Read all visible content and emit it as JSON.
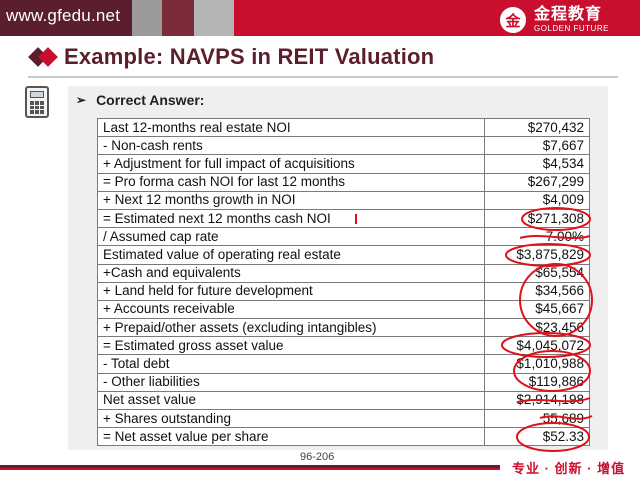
{
  "header": {
    "site_url": "www.gfedu.net",
    "logo_cn": "金程教育",
    "logo_en": "GOLDEN FUTURE",
    "logo_seal": "金",
    "colors": {
      "dark": "#5a1e2c",
      "red": "#c8102e",
      "grey": "#9b9b9b"
    }
  },
  "slide": {
    "title": "Example: NAVPS in REIT Valuation",
    "answer_heading": "Correct Answer:",
    "page_number": "96-206",
    "footer_slogan": "专业 · 创新 · 增值"
  },
  "table": {
    "rows": [
      {
        "label": "Last 12-months real estate NOI",
        "value": "$270,432"
      },
      {
        "label": "-  Non-cash rents",
        "value": "$7,667"
      },
      {
        "label": "+ Adjustment for full impact of acquisitions",
        "value": "$4,534"
      },
      {
        "label": "= Pro forma cash NOI for last 12 months",
        "value": "$267,299"
      },
      {
        "label": "+ Next 12 months growth in NOI",
        "value": "$4,009"
      },
      {
        "label": "= Estimated next 12 months cash NOI",
        "value": "$271,308"
      },
      {
        "label": "/ Assumed cap rate",
        "value": "7.00%"
      },
      {
        "label": "Estimated value of operating real estate",
        "value": "$3,875,829"
      },
      {
        "label": "+Cash and equivalents",
        "value": "$65,554"
      },
      {
        "label": "+ Land held for future development",
        "value": "$34,566"
      },
      {
        "label": "+ Accounts receivable",
        "value": "$45,667"
      },
      {
        "label": "+ Prepaid/other assets (excluding intangibles)",
        "value": "$23,456"
      },
      {
        "label": "= Estimated gross asset value",
        "value": "$4,045,072"
      },
      {
        "label": "-  Total debt",
        "value": "$1,010,988"
      },
      {
        "label": "-  Other liabilities",
        "value": "$119,886"
      },
      {
        "label": "Net asset value",
        "value": "$2,914,198"
      },
      {
        "label": "+ Shares outstanding",
        "value": "55,689"
      },
      {
        "label": "= Net asset value per share",
        "value": "$52.33"
      }
    ]
  },
  "icons": {
    "calculator": "calculator-icon",
    "bullet": "arrow-bullet-icon"
  }
}
